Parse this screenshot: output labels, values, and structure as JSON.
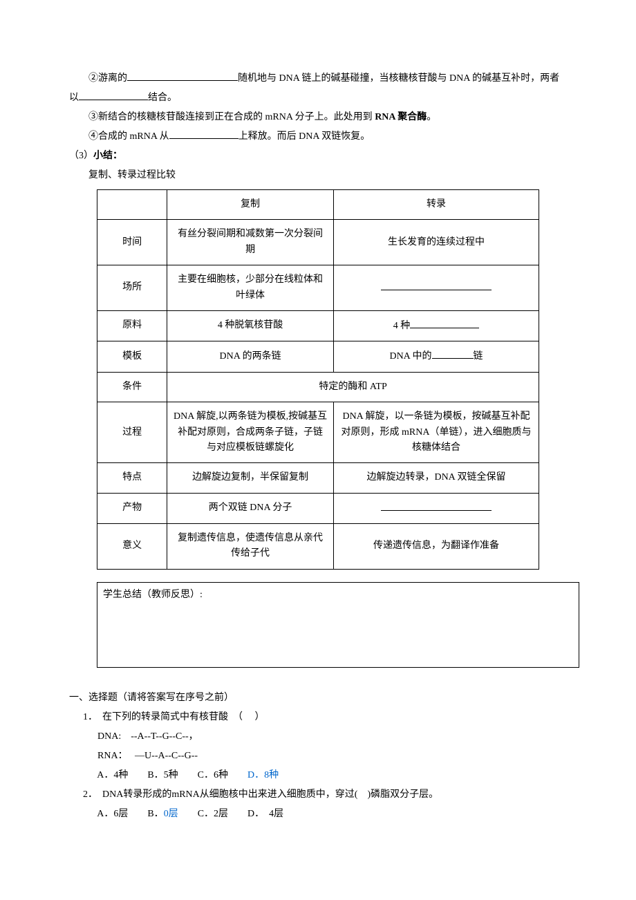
{
  "intro": {
    "para2_prefix": "②游离的",
    "para2_mid": "随机地与 DNA 链上的碱基碰撞，当核糖核苷酸与 DNA 的碱基互补时，两者以",
    "para2_end": "结合。",
    "para3_prefix": "③新结合的核糖核苷酸连接到正在合成的 mRNA 分子上。此处用到",
    "para3_bold": " RNA 聚合酶",
    "para3_end": "。",
    "para4_prefix": "④合成的 mRNA 从",
    "para4_end": "上释放。而后 DNA 双链恢复。"
  },
  "sec3_label": "（3）",
  "sec3_title": "小结：",
  "sec3_sub": "复制、转录过程比较",
  "table": {
    "h_copy": "复制",
    "h_trans": "转录",
    "r_time": "时间",
    "r_time_c": "有丝分裂间期和减数第一次分裂间期",
    "r_time_t": "生长发育的连续过程中",
    "r_place": "场所",
    "r_place_c": "主要在细胞核，少部分在线粒体和叶绿体",
    "r_mat": "原料",
    "r_mat_c": "4 种脱氧核苷酸",
    "r_mat_t_pre": "4 种",
    "r_tmpl": "模板",
    "r_tmpl_c": "DNA 的两条链",
    "r_tmpl_t_pre": "DNA 中的",
    "r_tmpl_t_suf": "链",
    "r_cond": "条件",
    "r_cond_v": "特定的酶和 ATP",
    "r_proc": "过程",
    "r_proc_c": "DNA 解旋,以两条链为模板,按碱基互补配对原则，合成两条子链，子链与对应模板链螺旋化",
    "r_proc_t": "DNA 解旋，以一条链为模板，按碱基互补配对原则，形成 mRNA（单链），进入细胞质与核糖体结合",
    "r_feat": "特点",
    "r_feat_c": "边解旋边复制，半保留复制",
    "r_feat_t": "边解旋边转录，DNA 双链全保留",
    "r_prod": "产物",
    "r_prod_c": "两个双链 DNA 分子",
    "r_sig": "意义",
    "r_sig_c": "复制遗传信息，使遗传信息从亲代传给子代",
    "r_sig_t": "传递遗传信息，为翻译作准备"
  },
  "reflect_label": "学生总结（教师反思）:",
  "sectionA": "一、选择题（请将答案写在序号之前）",
  "q1": {
    "num": "1．",
    "stem": "  在下列的转录简式中有核苷酸  （     ）",
    "dna": "      DNA:    --A--T--G--C--，",
    "rna": "      RNA：   —U--A--C--G--",
    "opts_pre": "      A．4种        B．5种        C．6种        ",
    "opt_d": "D．8种"
  },
  "q2": {
    "num": "2．",
    "stem": "  DNA转录形成的mRNA从细胞核中出来进入细胞质中，穿过(    )磷脂双分子层。",
    "opts_pre": "      A．6层        B．",
    "opt_b": "0层",
    "opts_post": "        C．2层        D．  4层"
  },
  "colors": {
    "text": "#000000",
    "highlight": "#0066cc",
    "background": "#ffffff",
    "border": "#000000"
  }
}
